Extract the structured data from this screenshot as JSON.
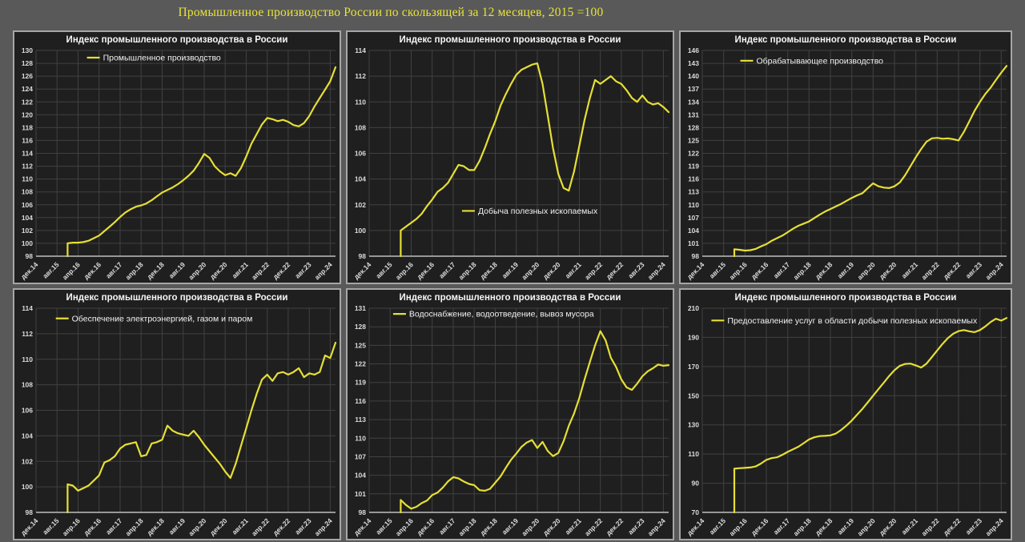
{
  "page": {
    "title": "Промышленное производство России по скользящей за 12 месяцев, 2015 =100",
    "title_color": "#e8e337",
    "background": "#595959"
  },
  "colors": {
    "line": "#e6df35",
    "grid": "#414141",
    "axis": "#bfbfbf",
    "plot_bg": "#1f1f1f",
    "panel_border": "#a6a6a6",
    "tick_text": "#dcdcdc",
    "legend_text": "#f2f2f2",
    "panel_title_text": "#f5f5f5"
  },
  "x_axis": {
    "tick_labels": [
      "дек.14",
      "авг.15",
      "апр.16",
      "дек.16",
      "авг.17",
      "апр.18",
      "дек.18",
      "авг.19",
      "апр.20",
      "дек.20",
      "авг.21",
      "апр.22",
      "дек.22",
      "авг.23",
      "апр.24"
    ],
    "tick_step_months": 8,
    "domain_months": 114,
    "series_start_month": 12,
    "series_step_months": 2,
    "series_start_label": "дек.15"
  },
  "chart_data": [
    {
      "type": "line",
      "title": "Индекс промышленного производства в России",
      "legend": "Промышленное производство",
      "ylim": [
        98,
        130
      ],
      "ystep": 2,
      "legend_pos": [
        0.17,
        0.035
      ],
      "values": [
        100.0,
        100.1,
        100.1,
        100.2,
        100.4,
        100.8,
        101.2,
        101.9,
        102.6,
        103.3,
        104.1,
        104.8,
        105.3,
        105.7,
        105.9,
        106.2,
        106.7,
        107.3,
        107.9,
        108.3,
        108.7,
        109.2,
        109.8,
        110.5,
        111.3,
        112.5,
        113.9,
        113.3,
        112.0,
        111.2,
        110.6,
        110.9,
        110.5,
        111.7,
        113.5,
        115.5,
        117.0,
        118.5,
        119.5,
        119.3,
        119.0,
        119.2,
        118.9,
        118.4,
        118.2,
        118.7,
        119.8,
        121.3,
        122.6,
        123.9,
        125.2,
        127.4
      ]
    },
    {
      "type": "line",
      "title": "Индекс промышленного производства в России",
      "legend": "Добыча полезных ископаемых",
      "ylim": [
        98,
        114
      ],
      "ystep": 2,
      "legend_pos": [
        0.31,
        0.78
      ],
      "values": [
        100.0,
        100.3,
        100.6,
        100.9,
        101.3,
        101.9,
        102.4,
        103.0,
        103.3,
        103.7,
        104.4,
        105.1,
        105.0,
        104.7,
        104.7,
        105.4,
        106.4,
        107.5,
        108.5,
        109.7,
        110.6,
        111.4,
        112.1,
        112.5,
        112.7,
        112.9,
        113.0,
        111.4,
        108.9,
        106.4,
        104.4,
        103.3,
        103.1,
        104.6,
        106.6,
        108.6,
        110.3,
        111.7,
        111.4,
        111.7,
        112.0,
        111.6,
        111.4,
        110.9,
        110.3,
        110.0,
        110.5,
        110.0,
        109.8,
        109.9,
        109.6,
        109.2
      ]
    },
    {
      "type": "line",
      "title": "Индекс промышленного производства в России",
      "legend": "Обрабатывающее производство",
      "ylim": [
        98,
        146
      ],
      "ystep": 3,
      "legend_pos": [
        0.125,
        0.05
      ],
      "values": [
        99.6,
        99.5,
        99.3,
        99.4,
        99.7,
        100.3,
        100.8,
        101.6,
        102.2,
        102.8,
        103.6,
        104.4,
        105.1,
        105.6,
        106.1,
        106.9,
        107.7,
        108.4,
        109.0,
        109.6,
        110.2,
        110.9,
        111.6,
        112.2,
        112.7,
        113.9,
        115.0,
        114.3,
        114.0,
        113.9,
        114.3,
        115.2,
        116.9,
        119.0,
        121.1,
        123.0,
        124.7,
        125.5,
        125.6,
        125.4,
        125.5,
        125.3,
        125.0,
        127.0,
        129.4,
        131.9,
        134.0,
        135.8,
        137.3,
        139.1,
        140.8,
        142.4
      ]
    },
    {
      "type": "line",
      "title": "Индекс промышленного производства в России",
      "legend": "Обеспечение электроэнергией, газом и паром",
      "ylim": [
        98,
        114
      ],
      "ystep": 2,
      "legend_pos": [
        0.066,
        0.05
      ],
      "values": [
        100.2,
        100.1,
        99.7,
        99.9,
        100.1,
        100.5,
        100.9,
        101.9,
        102.1,
        102.4,
        103.0,
        103.3,
        103.4,
        103.5,
        102.4,
        102.5,
        103.4,
        103.5,
        103.7,
        104.8,
        104.4,
        104.2,
        104.1,
        104.0,
        104.4,
        103.9,
        103.3,
        102.8,
        102.3,
        101.8,
        101.2,
        100.7,
        101.8,
        103.2,
        104.6,
        106.0,
        107.3,
        108.4,
        108.8,
        108.3,
        108.9,
        109.0,
        108.8,
        109.0,
        109.3,
        108.6,
        108.9,
        108.8,
        109.0,
        110.3,
        110.1,
        111.3
      ]
    },
    {
      "type": "line",
      "title": "Индекс промышленного производства в России",
      "legend": "Водоснабжение, водоотведение, вывоз мусора",
      "ylim": [
        98,
        131
      ],
      "ystep": 3,
      "legend_pos": [
        0.08,
        0.028
      ],
      "values": [
        100.0,
        99.2,
        98.6,
        98.9,
        99.5,
        99.9,
        100.8,
        101.2,
        102.0,
        103.0,
        103.7,
        103.5,
        103.0,
        102.6,
        102.4,
        101.6,
        101.5,
        101.8,
        102.8,
        103.8,
        105.2,
        106.5,
        107.5,
        108.6,
        109.3,
        109.7,
        108.4,
        109.4,
        107.9,
        107.1,
        107.6,
        109.5,
        112.0,
        114.0,
        116.5,
        119.5,
        122.3,
        125.0,
        127.3,
        125.8,
        123.0,
        121.5,
        119.5,
        118.2,
        117.8,
        118.8,
        120.0,
        120.8,
        121.3,
        121.9,
        121.7,
        121.8
      ]
    },
    {
      "type": "line",
      "title": "Индекс промышленного производства в России",
      "legend": "Предоставление услуг в области добычи полезных ископаемых",
      "ylim": [
        70,
        210
      ],
      "ystep": 20,
      "legend_pos": [
        0.03,
        0.06
      ],
      "values": [
        100.0,
        100.3,
        100.5,
        100.8,
        101.5,
        103.5,
        106.0,
        107.2,
        107.8,
        109.5,
        111.5,
        113.2,
        115.0,
        117.5,
        120.0,
        121.5,
        122.3,
        122.5,
        122.8,
        124.0,
        126.5,
        129.5,
        133.0,
        137.0,
        141.0,
        145.5,
        150.0,
        154.5,
        159.0,
        163.5,
        167.5,
        170.5,
        171.8,
        172.0,
        170.8,
        169.3,
        172.0,
        176.5,
        181.0,
        185.5,
        189.5,
        192.5,
        194.3,
        195.0,
        194.2,
        193.6,
        195.0,
        197.5,
        200.5,
        202.8,
        201.5,
        203.3
      ]
    }
  ]
}
